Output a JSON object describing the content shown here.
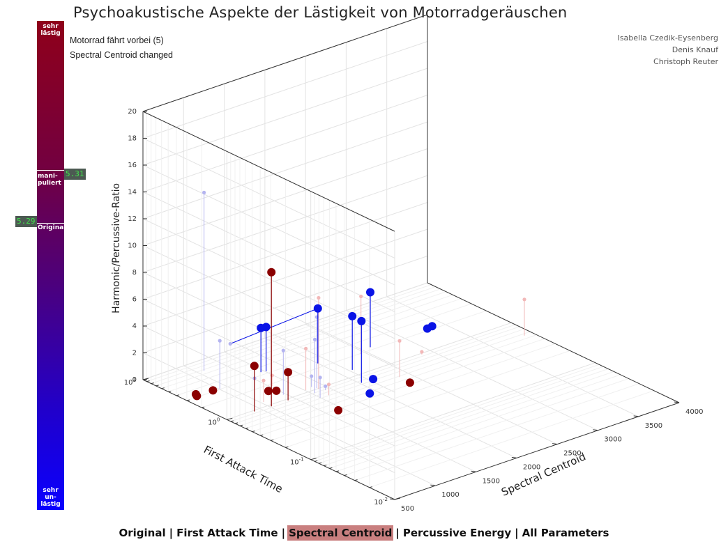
{
  "title": "Psychoakustische Aspekte der Lästigkeit von Motorradgeräuschen",
  "info": {
    "sample": "Motorrad fährt vorbei (5)",
    "status": "Spectral Centroid changed"
  },
  "authors": [
    "Isabella Czedik-Eysenberg",
    "Denis Knauf",
    "Christoph Reuter"
  ],
  "scale_bar": {
    "top_label": "sehr lästig",
    "bottom_label": "sehr un-lästig",
    "manipulated_label": "mani-puliert",
    "original_label": "Original",
    "manipulated_value": "5.31",
    "original_value": "5.29",
    "manipulated_level": 0.31,
    "original_level": 0.42
  },
  "nav": {
    "items": [
      "Original",
      "First Attack Time",
      "Spectral Centroid",
      "Percussive Energy",
      "All Parameters"
    ],
    "active_index": 2
  },
  "colors": {
    "red": "#8b0000",
    "blue": "#0a14e6",
    "faint_red": "#f2b8b8",
    "faint_blue": "#b4b4f0"
  },
  "chart_data": {
    "type": "scatter",
    "title": "",
    "xlabel": "Spectral Centroid",
    "ylabel": "First Attack Time",
    "zlabel": "Harmonic/Percussive-Ratio",
    "xlim": [
      500,
      4000
    ],
    "ylim": [
      0.01,
      10
    ],
    "zlim": [
      0,
      20
    ],
    "y_scale": "log",
    "x_ticks": [
      "500",
      "1000",
      "1500",
      "2000",
      "2500",
      "3000",
      "3500",
      "4000"
    ],
    "y_ticks": [
      "10^-2",
      "10^-1",
      "10^0",
      "10^1"
    ],
    "z_ticks": [
      "0",
      "2",
      "4",
      "6",
      "8",
      "10",
      "12",
      "14",
      "16",
      "18",
      "20"
    ],
    "grid": true,
    "series": [
      {
        "name": "",
        "color": "red",
        "points": [
          {
            "x": 1020,
            "y": 0.94,
            "z": 10.0
          },
          {
            "x": 820,
            "y": 0.96,
            "z": 3.4
          },
          {
            "x": 800,
            "y": 2.86,
            "z": 0.2
          },
          {
            "x": 600,
            "y": 2.85,
            "z": 0.2
          },
          {
            "x": 620,
            "y": 3.06,
            "z": 0.2
          },
          {
            "x": 1230,
            "y": 0.95,
            "z": 2.1
          },
          {
            "x": 1190,
            "y": 1.49,
            "z": 0.2
          },
          {
            "x": 1250,
            "y": 1.37,
            "z": 0.2
          },
          {
            "x": 1400,
            "y": 0.35,
            "z": 0.2
          },
          {
            "x": 2330,
            "y": 0.39,
            "z": 0.2
          }
        ]
      },
      {
        "name": "",
        "color": "blue",
        "points": [
          {
            "x": 1460,
            "y": 3.34,
            "z": 3.3
          },
          {
            "x": 1510,
            "y": 3.24,
            "z": 3.3
          },
          {
            "x": 2000,
            "y": 2.34,
            "z": 4.1
          },
          {
            "x": 2020,
            "y": 0.74,
            "z": 4.6
          },
          {
            "x": 2150,
            "y": 1.27,
            "z": 4.0
          },
          {
            "x": 1880,
            "y": 0.43,
            "z": 0.2
          },
          {
            "x": 2120,
            "y": 0.67,
            "z": 0.2
          },
          {
            "x": 2620,
            "y": 2.21,
            "z": 4.1
          },
          {
            "x": 3270,
            "y": 1.97,
            "z": 0.2
          },
          {
            "x": 3340,
            "y": 2.02,
            "z": 0.2
          }
        ],
        "connected_from": {
          "x": 940,
          "y": 2.43,
          "z": 3.6
        }
      },
      {
        "name": "",
        "color": "faint_red",
        "points": [
          {
            "x": 1620,
            "y": 0.98,
            "z": 6.8
          },
          {
            "x": 2450,
            "y": 1.95,
            "z": 4.3
          },
          {
            "x": 3900,
            "y": 0.56,
            "z": 2.7
          },
          {
            "x": 1510,
            "y": 1.09,
            "z": 3.1
          },
          {
            "x": 1330,
            "y": 1.84,
            "z": 0.8
          },
          {
            "x": 1030,
            "y": 1.19,
            "z": 1.6
          },
          {
            "x": 2380,
            "y": 0.58,
            "z": 2.7
          },
          {
            "x": 1600,
            "y": 0.71,
            "z": 0.8
          },
          {
            "x": 2880,
            "y": 0.96,
            "z": 0.2
          }
        ]
      },
      {
        "name": "",
        "color": "faint_blue",
        "points": [
          {
            "x": 1070,
            "y": 6.67,
            "z": 13.3
          },
          {
            "x": 910,
            "y": 3.03,
            "z": 3.6
          },
          {
            "x": 1280,
            "y": 1.21,
            "z": 3.3
          },
          {
            "x": 1620,
            "y": 1.03,
            "z": 5.3
          },
          {
            "x": 1530,
            "y": 0.89,
            "z": 4.0
          },
          {
            "x": 1600,
            "y": 1.14,
            "z": 0.8
          },
          {
            "x": 1500,
            "y": 0.72,
            "z": 1.5
          },
          {
            "x": 1160,
            "y": 2.04,
            "z": 0.8
          },
          {
            "x": 1650,
            "y": 0.87,
            "z": 0.3
          }
        ]
      }
    ]
  }
}
